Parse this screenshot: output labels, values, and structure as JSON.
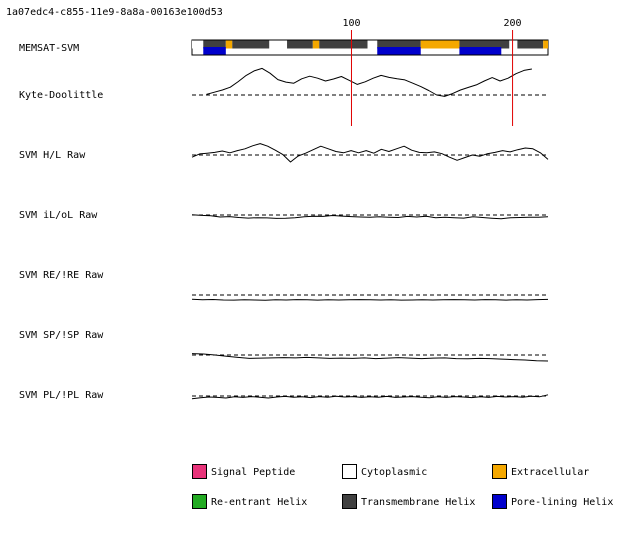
{
  "header_id": "1a07edc4-c855-11e9-8a8a-00163e100d53",
  "colors": {
    "signal_peptide": "#e8337a",
    "cytoplasmic": "#ffffff",
    "extracellular": "#f5a800",
    "reentrant_helix": "#22aa22",
    "transmembrane_helix": "#404040",
    "pore_lining_helix": "#0000cc",
    "marker": "#e00000",
    "trace": "#000000",
    "baseline": "#000000"
  },
  "legend": [
    {
      "label": "Signal Peptide",
      "color": "#e8337a"
    },
    {
      "label": "Cytoplasmic",
      "color": "#ffffff"
    },
    {
      "label": "Extracellular",
      "color": "#f5a800"
    },
    {
      "label": "Re-entrant Helix",
      "color": "#22aa22"
    },
    {
      "label": "Transmembrane Helix",
      "color": "#404040"
    },
    {
      "label": "Pore-lining Helix",
      "color": "#0000cc"
    }
  ],
  "chart_data": {
    "type": "line",
    "title": "",
    "sequence_length": 222,
    "position_ticks": [
      100,
      200
    ],
    "topology": {
      "label": "MEMSAT-SVM",
      "top": [
        {
          "start": 1,
          "end": 8,
          "type": "cytoplasmic"
        },
        {
          "start": 8,
          "end": 22,
          "type": "transmembrane_helix"
        },
        {
          "start": 22,
          "end": 26,
          "type": "extracellular"
        },
        {
          "start": 26,
          "end": 49,
          "type": "transmembrane_helix"
        },
        {
          "start": 49,
          "end": 60,
          "type": "cytoplasmic"
        },
        {
          "start": 60,
          "end": 76,
          "type": "transmembrane_helix"
        },
        {
          "start": 76,
          "end": 80,
          "type": "extracellular"
        },
        {
          "start": 80,
          "end": 110,
          "type": "transmembrane_helix"
        },
        {
          "start": 110,
          "end": 116,
          "type": "cytoplasmic"
        },
        {
          "start": 116,
          "end": 143,
          "type": "transmembrane_helix"
        },
        {
          "start": 143,
          "end": 167,
          "type": "extracellular"
        },
        {
          "start": 167,
          "end": 198,
          "type": "transmembrane_helix"
        },
        {
          "start": 198,
          "end": 203,
          "type": "cytoplasmic"
        },
        {
          "start": 203,
          "end": 219,
          "type": "transmembrane_helix"
        },
        {
          "start": 219,
          "end": 222,
          "type": "extracellular"
        }
      ],
      "bottom": [
        {
          "start": 8,
          "end": 22,
          "type": "pore_lining_helix"
        },
        {
          "start": 116,
          "end": 143,
          "type": "pore_lining_helix"
        },
        {
          "start": 167,
          "end": 193,
          "type": "pore_lining_helix"
        }
      ]
    },
    "series": [
      {
        "name": "Kyte-Doolittle",
        "x_start": 10,
        "x_end": 212,
        "values": [
          0.02,
          0.1,
          0.18,
          0.28,
          0.48,
          0.7,
          0.86,
          0.95,
          0.78,
          0.55,
          0.46,
          0.42,
          0.58,
          0.67,
          0.6,
          0.5,
          0.57,
          0.66,
          0.52,
          0.38,
          0.47,
          0.6,
          0.7,
          0.63,
          0.58,
          0.54,
          0.42,
          0.3,
          0.16,
          0.0,
          -0.05,
          0.05,
          0.18,
          0.27,
          0.36,
          0.5,
          0.62,
          0.5,
          0.6,
          0.76,
          0.88,
          0.93
        ]
      },
      {
        "name": "SVM H/L Raw",
        "x_start": 1,
        "x_end": 222,
        "values": [
          -0.1,
          0.05,
          0.08,
          0.12,
          0.18,
          0.1,
          0.2,
          0.28,
          0.42,
          0.52,
          0.4,
          0.22,
          0.02,
          -0.32,
          -0.05,
          0.08,
          0.24,
          0.4,
          0.28,
          0.16,
          0.1,
          0.2,
          0.1,
          0.2,
          0.08,
          0.26,
          0.16,
          0.28,
          0.4,
          0.22,
          0.12,
          0.1,
          0.14,
          0.06,
          -0.1,
          -0.24,
          -0.12,
          0.0,
          -0.06,
          0.06,
          0.12,
          0.2,
          0.14,
          0.24,
          0.32,
          0.28,
          0.1,
          -0.2
        ]
      },
      {
        "name": "SVM iL/oL Raw",
        "x_start": 1,
        "x_end": 222,
        "values": [
          0.02,
          -0.04,
          -0.08,
          -0.22,
          -0.18,
          -0.28,
          -0.34,
          -0.3,
          -0.32,
          -0.38,
          -0.36,
          -0.3,
          -0.2,
          -0.14,
          -0.16,
          -0.06,
          -0.12,
          -0.18,
          -0.22,
          -0.26,
          -0.2,
          -0.24,
          -0.28,
          -0.16,
          -0.22,
          -0.14,
          -0.3,
          -0.26,
          -0.3,
          -0.34,
          -0.2,
          -0.28,
          -0.36,
          -0.42,
          -0.3,
          -0.28,
          -0.24,
          -0.26,
          -0.2
        ]
      },
      {
        "name": "SVM RE/!RE Raw",
        "x_start": 1,
        "x_end": 222,
        "values": [
          -0.52,
          -0.6,
          -0.56,
          -0.62,
          -0.64,
          -0.6,
          -0.62,
          -0.66,
          -0.6,
          -0.62,
          -0.58,
          -0.6,
          -0.64,
          -0.6,
          -0.62,
          -0.6,
          -0.58,
          -0.6,
          -0.62,
          -0.6,
          -0.64,
          -0.62,
          -0.6,
          -0.62,
          -0.6,
          -0.58,
          -0.6,
          -0.62,
          -0.58,
          -0.6,
          -0.64,
          -0.6,
          -0.62,
          -0.58,
          -0.55
        ]
      },
      {
        "name": "SVM SP/!SP Raw",
        "x_start": 1,
        "x_end": 222,
        "values": [
          0.12,
          0.08,
          0.0,
          -0.1,
          -0.2,
          -0.28,
          -0.26,
          -0.24,
          -0.22,
          -0.24,
          -0.2,
          -0.24,
          -0.28,
          -0.26,
          -0.28,
          -0.24,
          -0.3,
          -0.26,
          -0.22,
          -0.26,
          -0.3,
          -0.26,
          -0.24,
          -0.3,
          -0.32,
          -0.28,
          -0.3,
          -0.34,
          -0.38,
          -0.42,
          -0.48,
          -0.5
        ]
      },
      {
        "name": "SVM PL/!PL Raw",
        "x_start": 1,
        "x_end": 222,
        "values": [
          -0.28,
          -0.18,
          -0.1,
          -0.14,
          -0.2,
          -0.08,
          -0.14,
          -0.06,
          -0.12,
          -0.2,
          -0.1,
          -0.04,
          -0.12,
          -0.08,
          -0.16,
          -0.06,
          -0.12,
          -0.02,
          -0.1,
          -0.06,
          -0.14,
          -0.08,
          -0.12,
          -0.04,
          -0.14,
          -0.1,
          -0.06,
          -0.12,
          -0.18,
          -0.08,
          -0.14,
          -0.06,
          -0.1,
          -0.16,
          -0.08,
          -0.14,
          -0.04,
          -0.1,
          -0.06,
          -0.12,
          -0.02,
          -0.08,
          0.12
        ]
      }
    ]
  }
}
